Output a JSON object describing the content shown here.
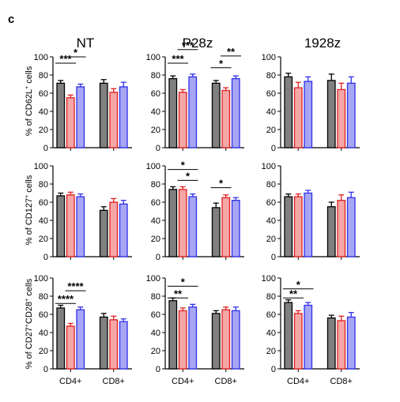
{
  "panel_letter": "c",
  "column_titles": [
    "NT",
    "P28z",
    "1928z"
  ],
  "row_ylabels": [
    {
      "prefix": "% of CD62L",
      "sup": "+",
      "suffix": " cells"
    },
    {
      "prefix": "% of CD127",
      "sup": "+",
      "suffix": " cells"
    },
    {
      "prefix": "% of CD27",
      "sup": "+",
      "mid": "CD28",
      "sup2": "+",
      "suffix": " cells"
    }
  ],
  "colors": {
    "bar1": "#808080",
    "bar2": "#f4a7a7",
    "bar3": "#a6a6f4",
    "err1": "#000000",
    "err2": "#e01f1f",
    "err3": "#2f2fe8",
    "axis": "#000000"
  },
  "chart_data": [
    {
      "type": "bar",
      "row": 0,
      "col": 0,
      "categories": [
        "CD4+",
        "CD8+"
      ],
      "ylim": [
        0,
        100
      ],
      "yticks": [
        0,
        20,
        40,
        60,
        80,
        100
      ],
      "series": [
        {
          "values": [
            71,
            71
          ],
          "errors": [
            3,
            4
          ]
        },
        {
          "values": [
            55,
            61
          ],
          "errors": [
            3,
            4
          ]
        },
        {
          "values": [
            67,
            67
          ],
          "errors": [
            3,
            5
          ]
        }
      ],
      "significance": [
        {
          "from": [
            0,
            0
          ],
          "to": [
            0,
            1
          ],
          "label": "***",
          "y": 93
        },
        {
          "from": [
            0,
            1
          ],
          "to": [
            0,
            2
          ],
          "label": "*",
          "y": 100
        }
      ]
    },
    {
      "type": "bar",
      "row": 0,
      "col": 1,
      "categories": [
        "CD4+",
        "CD8+"
      ],
      "ylim": [
        0,
        100
      ],
      "yticks": [
        0,
        20,
        40,
        60,
        80,
        100
      ],
      "series": [
        {
          "values": [
            76,
            71
          ],
          "errors": [
            3,
            3
          ]
        },
        {
          "values": [
            61,
            63
          ],
          "errors": [
            3,
            3
          ]
        },
        {
          "values": [
            78,
            76
          ],
          "errors": [
            3,
            3
          ]
        }
      ],
      "significance": [
        {
          "from": [
            0,
            0
          ],
          "to": [
            0,
            1
          ],
          "label": "***",
          "y": 93
        },
        {
          "from": [
            0,
            1
          ],
          "to": [
            0,
            2
          ],
          "label": "***",
          "y": 108
        },
        {
          "from": [
            1,
            0
          ],
          "to": [
            1,
            1
          ],
          "label": "*",
          "y": 88
        },
        {
          "from": [
            1,
            1
          ],
          "to": [
            1,
            2
          ],
          "label": "**",
          "y": 101
        }
      ]
    },
    {
      "type": "bar",
      "row": 0,
      "col": 2,
      "categories": [
        "CD4+",
        "CD8+"
      ],
      "ylim": [
        0,
        100
      ],
      "yticks": [
        0,
        20,
        40,
        60,
        80,
        100
      ],
      "series": [
        {
          "values": [
            78,
            74
          ],
          "errors": [
            4,
            7
          ]
        },
        {
          "values": [
            66,
            64
          ],
          "errors": [
            6,
            7
          ]
        },
        {
          "values": [
            73,
            71
          ],
          "errors": [
            5,
            7
          ]
        }
      ],
      "significance": []
    },
    {
      "type": "bar",
      "row": 1,
      "col": 0,
      "categories": [
        "CD4+",
        "CD8+"
      ],
      "ylim": [
        0,
        100
      ],
      "yticks": [
        0,
        20,
        40,
        60,
        80,
        100
      ],
      "series": [
        {
          "values": [
            67,
            51
          ],
          "errors": [
            3,
            4
          ]
        },
        {
          "values": [
            68,
            60
          ],
          "errors": [
            3,
            4
          ]
        },
        {
          "values": [
            66,
            58
          ],
          "errors": [
            3,
            4
          ]
        }
      ],
      "significance": []
    },
    {
      "type": "bar",
      "row": 1,
      "col": 1,
      "categories": [
        "CD4+",
        "CD8+"
      ],
      "ylim": [
        0,
        100
      ],
      "yticks": [
        0,
        20,
        40,
        60,
        80,
        100
      ],
      "series": [
        {
          "values": [
            74,
            54
          ],
          "errors": [
            3,
            5
          ]
        },
        {
          "values": [
            74,
            65
          ],
          "errors": [
            3,
            3
          ]
        },
        {
          "values": [
            66,
            62
          ],
          "errors": [
            3,
            3
          ]
        }
      ],
      "significance": [
        {
          "from": [
            0,
            0
          ],
          "to": [
            0,
            2
          ],
          "label": "*",
          "y": 96
        },
        {
          "from": [
            0,
            1
          ],
          "to": [
            0,
            2
          ],
          "label": "*",
          "y": 84
        },
        {
          "from": [
            1,
            0
          ],
          "to": [
            1,
            1
          ],
          "label": "*",
          "y": 76
        }
      ]
    },
    {
      "type": "bar",
      "row": 1,
      "col": 2,
      "categories": [
        "CD4+",
        "CD8+"
      ],
      "ylim": [
        0,
        100
      ],
      "yticks": [
        0,
        20,
        40,
        60,
        80,
        100
      ],
      "series": [
        {
          "values": [
            66,
            55
          ],
          "errors": [
            3,
            5
          ]
        },
        {
          "values": [
            66,
            62
          ],
          "errors": [
            3,
            6
          ]
        },
        {
          "values": [
            70,
            65
          ],
          "errors": [
            3,
            6
          ]
        }
      ],
      "significance": []
    },
    {
      "type": "bar",
      "row": 2,
      "col": 0,
      "categories": [
        "CD4+",
        "CD8+"
      ],
      "ylim": [
        0,
        100
      ],
      "yticks": [
        0,
        20,
        40,
        60,
        80,
        100
      ],
      "series": [
        {
          "values": [
            67,
            57
          ],
          "errors": [
            3,
            4
          ]
        },
        {
          "values": [
            47,
            54
          ],
          "errors": [
            3,
            4
          ]
        },
        {
          "values": [
            65,
            52
          ],
          "errors": [
            3,
            3
          ]
        }
      ],
      "significance": [
        {
          "from": [
            0,
            0
          ],
          "to": [
            0,
            1
          ],
          "label": "****",
          "y": 72
        },
        {
          "from": [
            0,
            1
          ],
          "to": [
            0,
            2
          ],
          "label": "****",
          "y": 86
        }
      ]
    },
    {
      "type": "bar",
      "row": 2,
      "col": 1,
      "categories": [
        "CD4+",
        "CD8+"
      ],
      "ylim": [
        0,
        100
      ],
      "yticks": [
        0,
        20,
        40,
        60,
        80,
        100
      ],
      "series": [
        {
          "values": [
            75,
            61
          ],
          "errors": [
            3,
            3
          ]
        },
        {
          "values": [
            64,
            65
          ],
          "errors": [
            3,
            3
          ]
        },
        {
          "values": [
            68,
            64
          ],
          "errors": [
            3,
            4
          ]
        }
      ],
      "significance": [
        {
          "from": [
            0,
            0
          ],
          "to": [
            0,
            2
          ],
          "label": "*",
          "y": 91
        },
        {
          "from": [
            0,
            0
          ],
          "to": [
            0,
            1
          ],
          "label": "**",
          "y": 78
        }
      ]
    },
    {
      "type": "bar",
      "row": 2,
      "col": 2,
      "categories": [
        "CD4+",
        "CD8+"
      ],
      "ylim": [
        0,
        100
      ],
      "yticks": [
        0,
        20,
        40,
        60,
        80,
        100
      ],
      "series": [
        {
          "values": [
            73,
            56
          ],
          "errors": [
            3,
            3
          ]
        },
        {
          "values": [
            61,
            53
          ],
          "errors": [
            3,
            5
          ]
        },
        {
          "values": [
            70,
            57
          ],
          "errors": [
            3,
            5
          ]
        }
      ],
      "significance": [
        {
          "from": [
            0,
            0
          ],
          "to": [
            0,
            1
          ],
          "label": "**",
          "y": 78
        },
        {
          "from": [
            0,
            0
          ],
          "to": [
            0,
            2
          ],
          "label": "*",
          "y": 88
        }
      ]
    }
  ]
}
